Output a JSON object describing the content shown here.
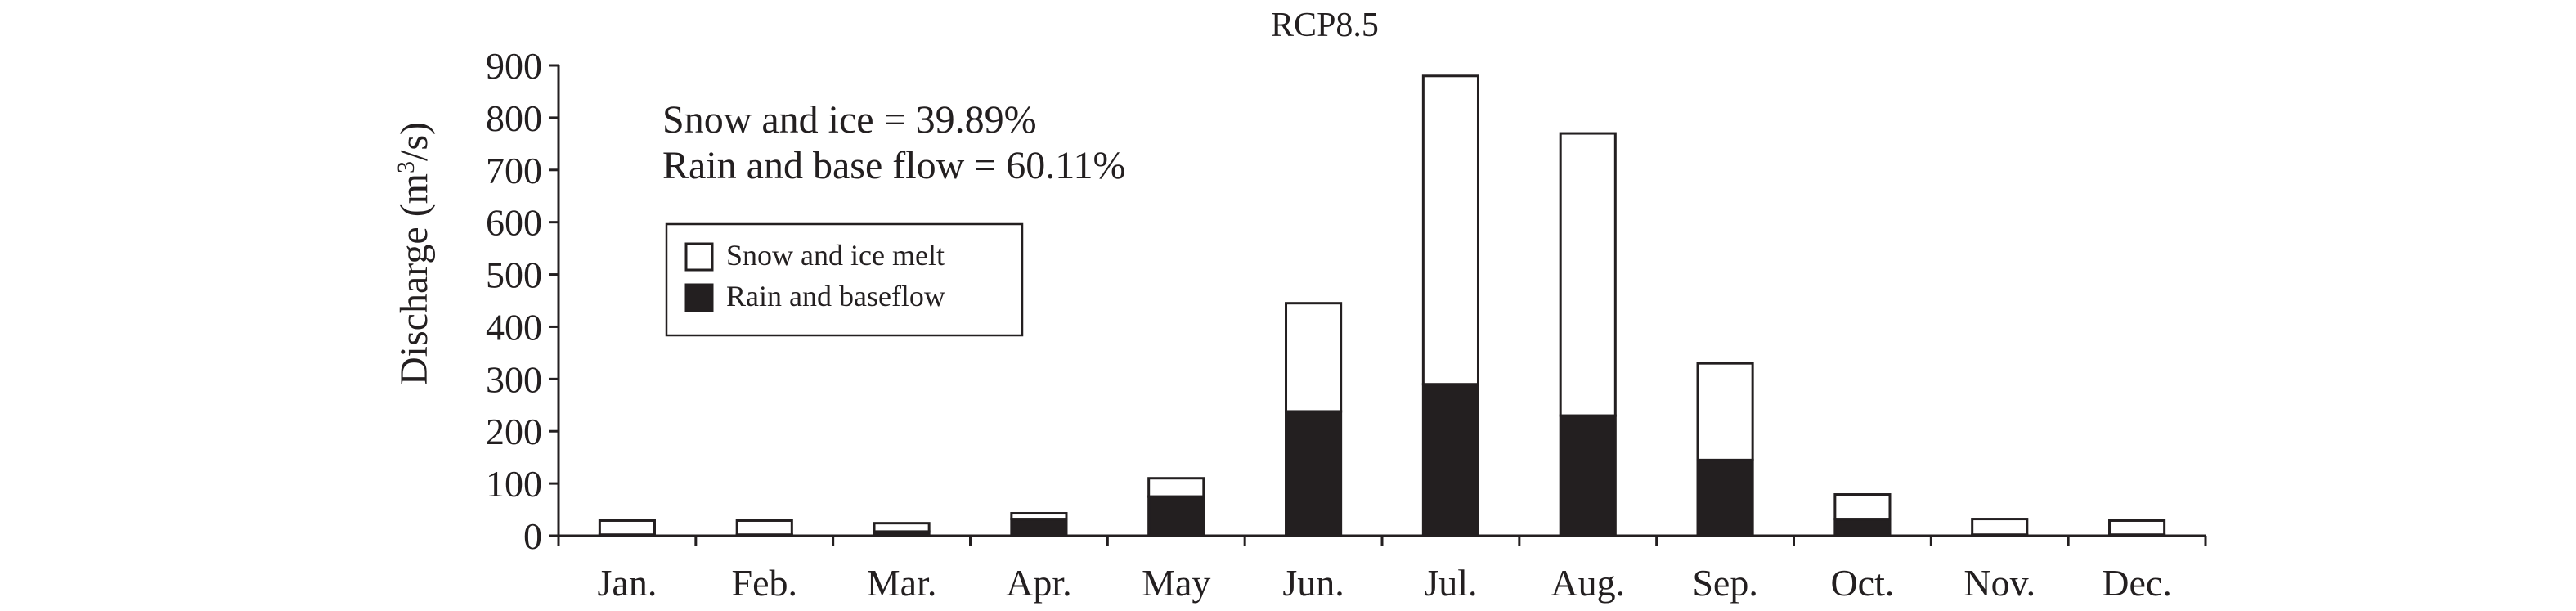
{
  "chart_data": {
    "type": "bar",
    "stacked": true,
    "title": "RCP8.5",
    "xlabel": "",
    "ylabel": "Discharge (m³/s)",
    "ylabel_parts": {
      "prefix": "Discharge (m",
      "sup": "3",
      "suffix": "/s)"
    },
    "ylim": [
      0,
      900
    ],
    "yticks": [
      0,
      100,
      200,
      300,
      400,
      500,
      600,
      700,
      800,
      900
    ],
    "categories": [
      "Jan.",
      "Feb.",
      "Mar.",
      "Apr.",
      "May",
      "Jun.",
      "Jul.",
      "Aug.",
      "Sep.",
      "Oct.",
      "Nov.",
      "Dec."
    ],
    "series": [
      {
        "name": "Rain and baseflow",
        "color": "#231f20",
        "values": [
          2,
          2,
          8,
          32,
          75,
          238,
          290,
          230,
          145,
          32,
          2,
          2
        ]
      },
      {
        "name": "Snow and ice melt",
        "color": "#ffffff",
        "values": [
          27,
          27,
          16,
          11,
          35,
          207,
          590,
          540,
          185,
          47,
          30,
          27
        ]
      }
    ],
    "legend_position": "top-left",
    "annotations": [
      "Snow and ice = 39.89%",
      "Rain and base flow = 60.11%"
    ],
    "grid": false
  }
}
